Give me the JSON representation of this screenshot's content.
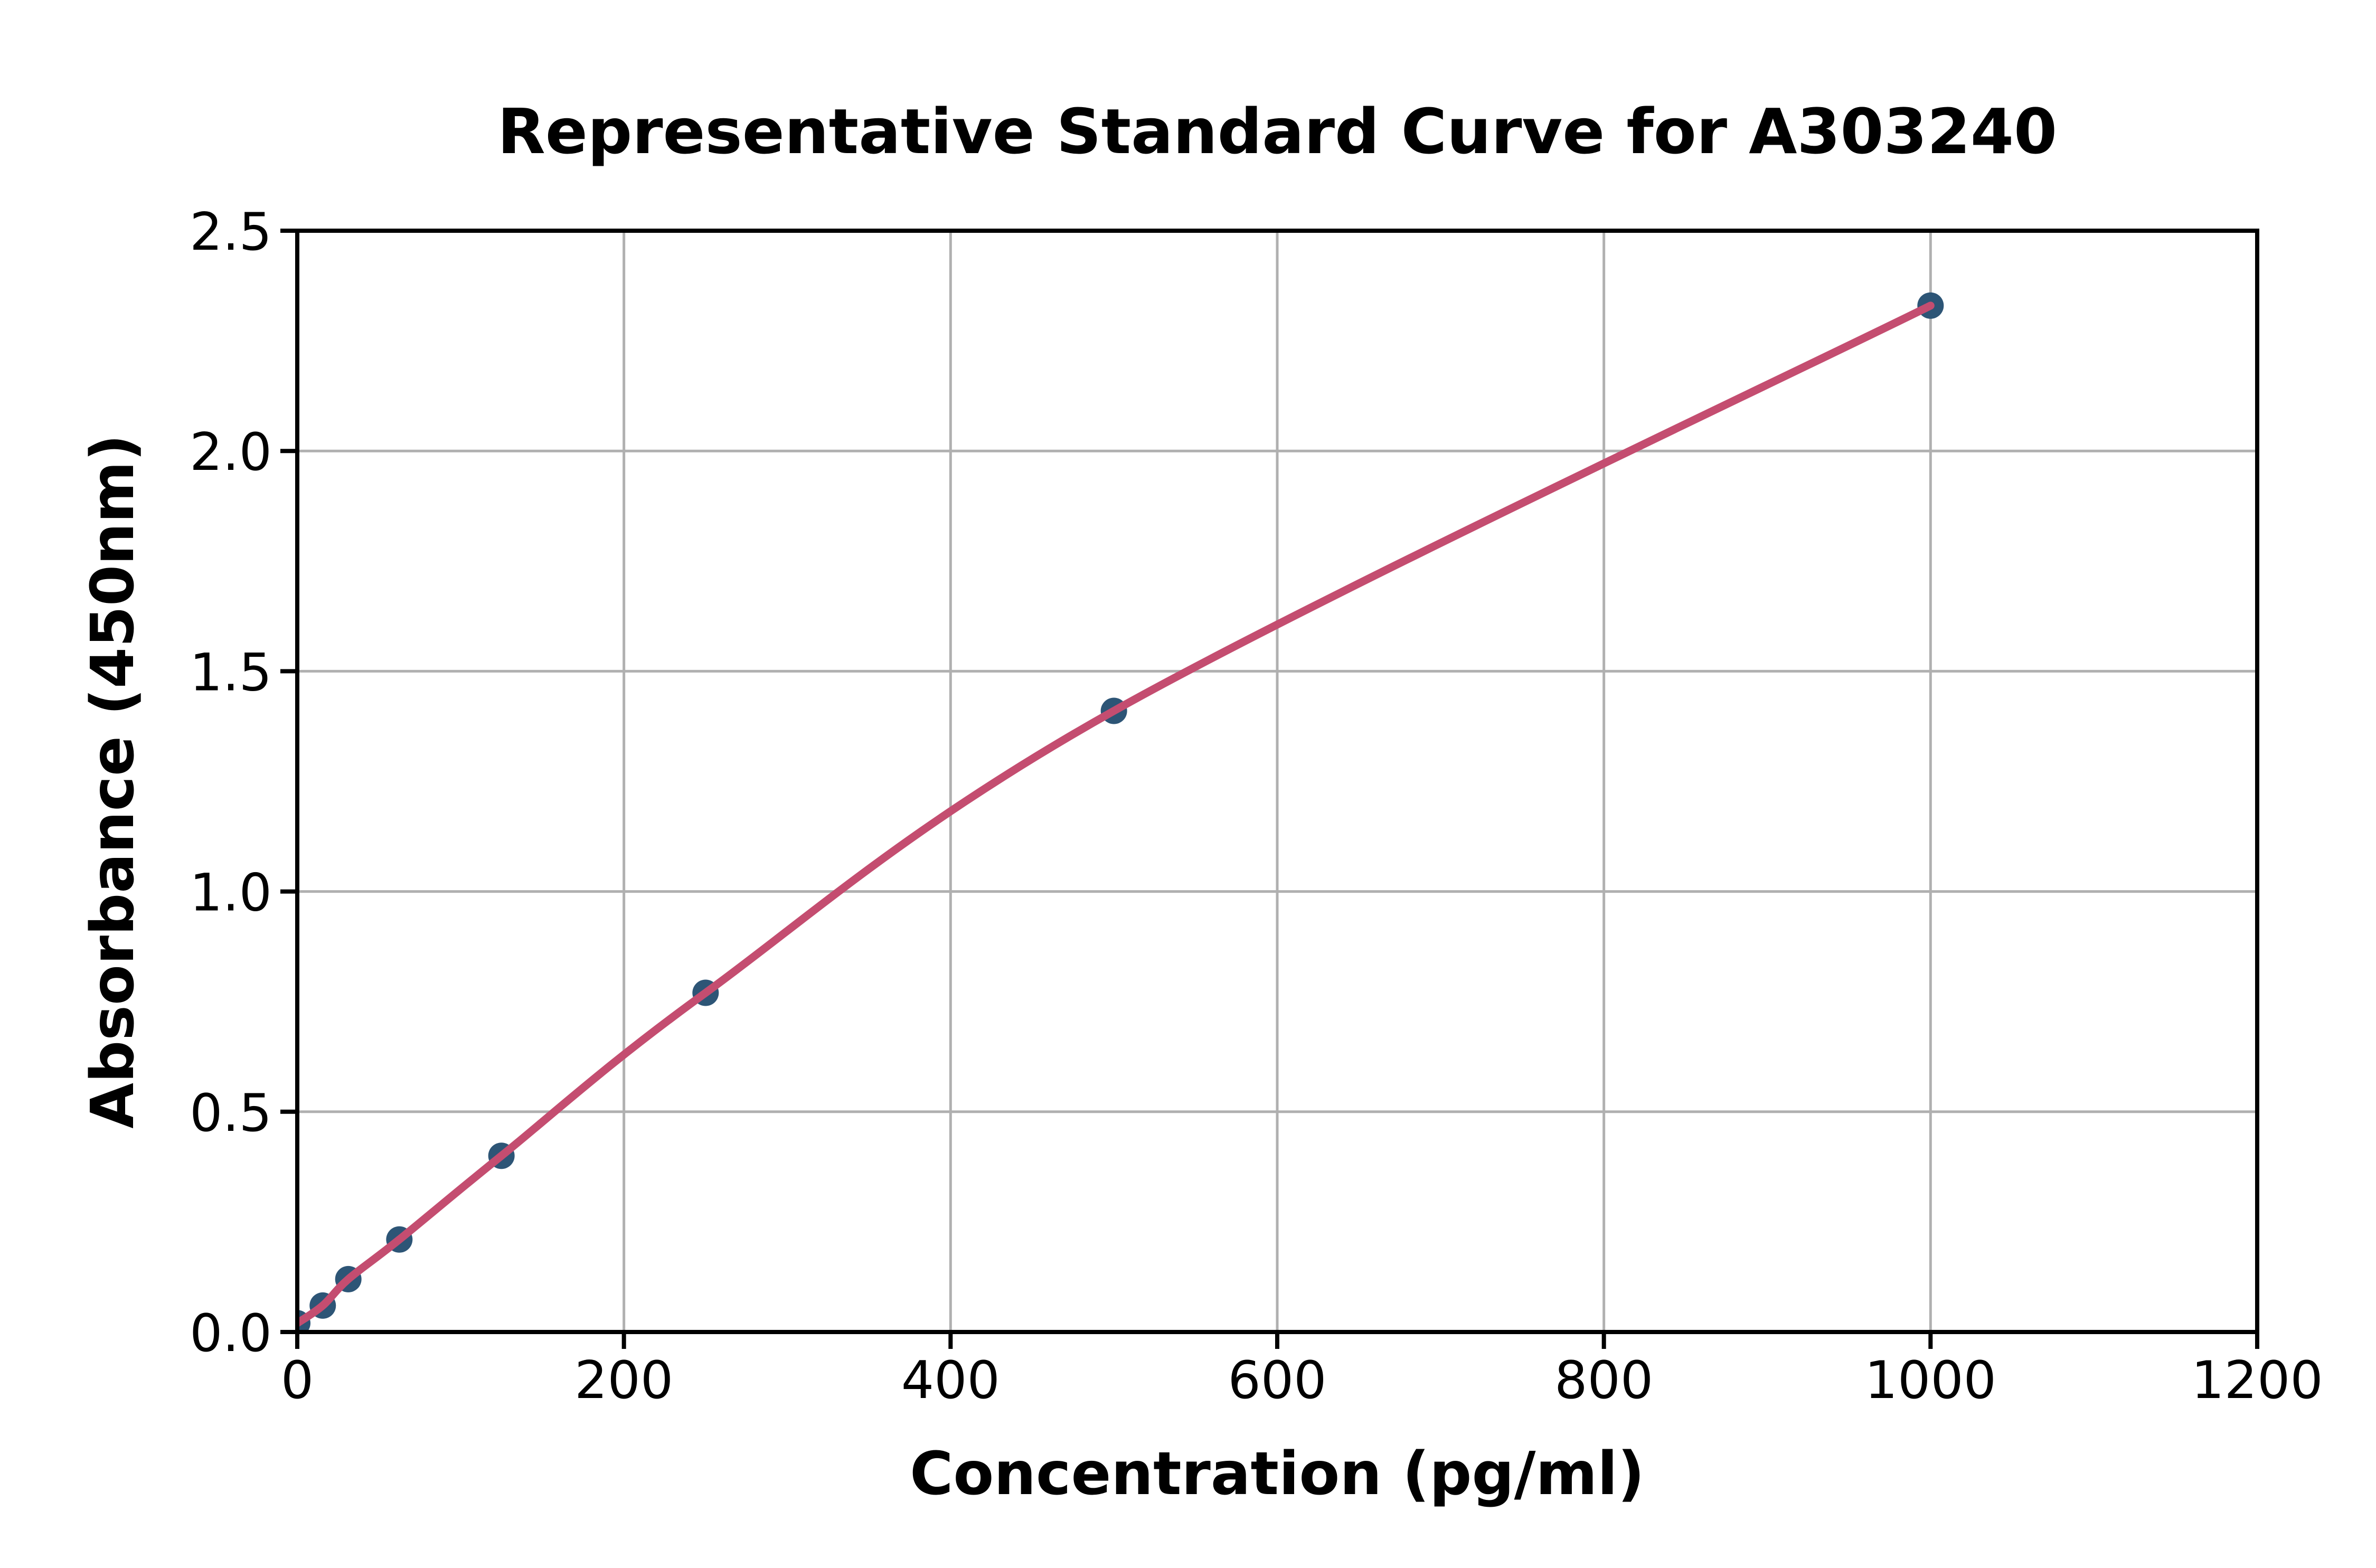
{
  "chart_data": {
    "type": "scatter",
    "title": "Representative Standard Curve for A303240",
    "xlabel": "Concentration (pg/ml)",
    "ylabel": "Absorbance (450nm)",
    "xlim": [
      0,
      1200
    ],
    "ylim": [
      0,
      2.5
    ],
    "grid": true,
    "legend_position": "none",
    "x_ticks": {
      "values": [
        0,
        200,
        400,
        600,
        800,
        1000,
        1200
      ],
      "labels": [
        "0",
        "200",
        "400",
        "600",
        "800",
        "1000",
        "1200"
      ]
    },
    "y_ticks": {
      "values": [
        0,
        0.5,
        1.0,
        1.5,
        2.0,
        2.5
      ],
      "labels": [
        "0.0",
        "0.5",
        "1.0",
        "1.5",
        "2.0",
        "2.5"
      ]
    },
    "series": [
      {
        "name": "standard-curve",
        "style": "smooth-line-with-markers",
        "x": [
          0,
          15.6,
          31.25,
          62.5,
          125,
          250,
          500,
          1000
        ],
        "y": [
          0.02,
          0.06,
          0.12,
          0.21,
          0.4,
          0.77,
          1.41,
          2.33
        ]
      }
    ],
    "colors": {
      "curve_line": "#c44d70",
      "marker": "#2d5576",
      "gridline": "#b0b0b0",
      "axis": "#000000",
      "background": "#ffffff"
    }
  }
}
